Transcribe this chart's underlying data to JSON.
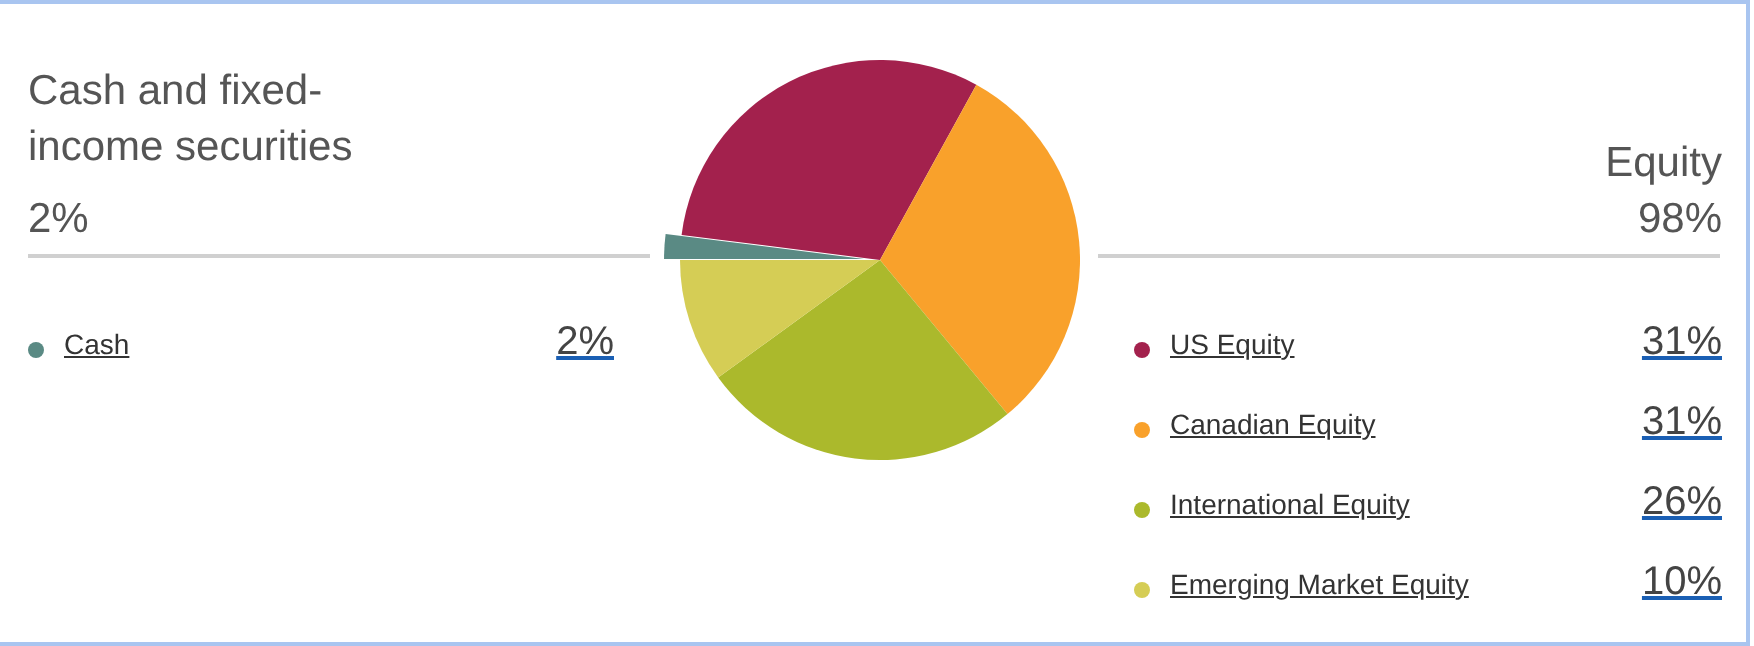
{
  "chart_data": {
    "type": "pie",
    "categories": [
      "Cash",
      "US Equity",
      "Canadian Equity",
      "International Equity",
      "Emerging Market Equity"
    ],
    "values": [
      2,
      31,
      31,
      26,
      10
    ],
    "colors": [
      "#5a8a84",
      "#a3214d",
      "#f9a12b",
      "#abb92c",
      "#d5cd55"
    ],
    "annotations": [
      "Cash and fixed-income securities",
      "2%",
      "Equity",
      "98%"
    ],
    "value_labels": [
      "2%",
      "31%",
      "31%",
      "26%",
      "10%"
    ],
    "legend": "bottom"
  }
}
